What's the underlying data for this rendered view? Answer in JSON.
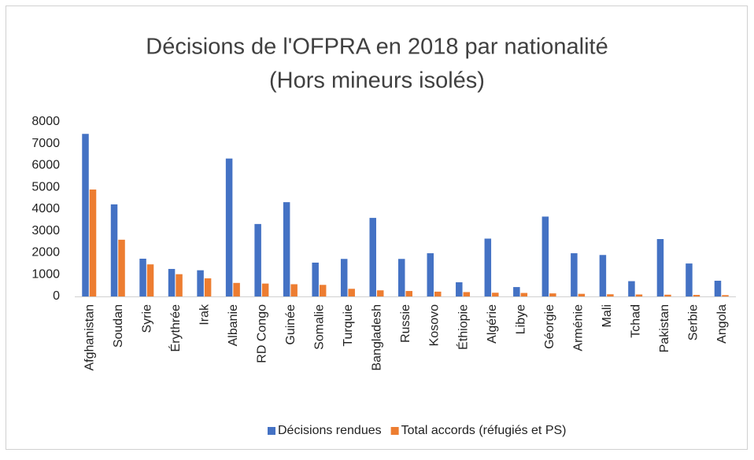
{
  "chart_data": {
    "type": "bar",
    "title": "Décisions de l'OFPRA en 2018 par nationalité",
    "subtitle": "(Hors mineurs isolés)",
    "categories": [
      "Afghanistan",
      "Soudan",
      "Syrie",
      "Érythrée",
      "Irak",
      "Albanie",
      "RD Congo",
      "Guinée",
      "Somalie",
      "Turquie",
      "Bangladesh",
      "Russie",
      "Kosovo",
      "Éthiopie",
      "Algérie",
      "Libye",
      "Géorgie",
      "Arménie",
      "Mali",
      "Tchad",
      "Pakistan",
      "Serbie",
      "Angola"
    ],
    "series": [
      {
        "name": "Décisions rendues",
        "color": "#4472c4",
        "values": [
          7450,
          4220,
          1730,
          1260,
          1200,
          6320,
          3320,
          4320,
          1550,
          1720,
          3600,
          1720,
          1980,
          650,
          2650,
          430,
          3660,
          1980,
          1900,
          700,
          2630,
          1510,
          720
        ]
      },
      {
        "name": "Total accords (réfugiés et PS)",
        "color": "#ed7d31",
        "values": [
          4900,
          2600,
          1470,
          1020,
          830,
          620,
          590,
          560,
          530,
          350,
          280,
          250,
          220,
          200,
          170,
          160,
          140,
          120,
          100,
          90,
          80,
          70,
          60
        ]
      }
    ],
    "ylim": [
      0,
      8000
    ],
    "yticks": [
      0,
      1000,
      2000,
      3000,
      4000,
      5000,
      6000,
      7000,
      8000
    ],
    "grid": false,
    "legend": "bottom"
  }
}
